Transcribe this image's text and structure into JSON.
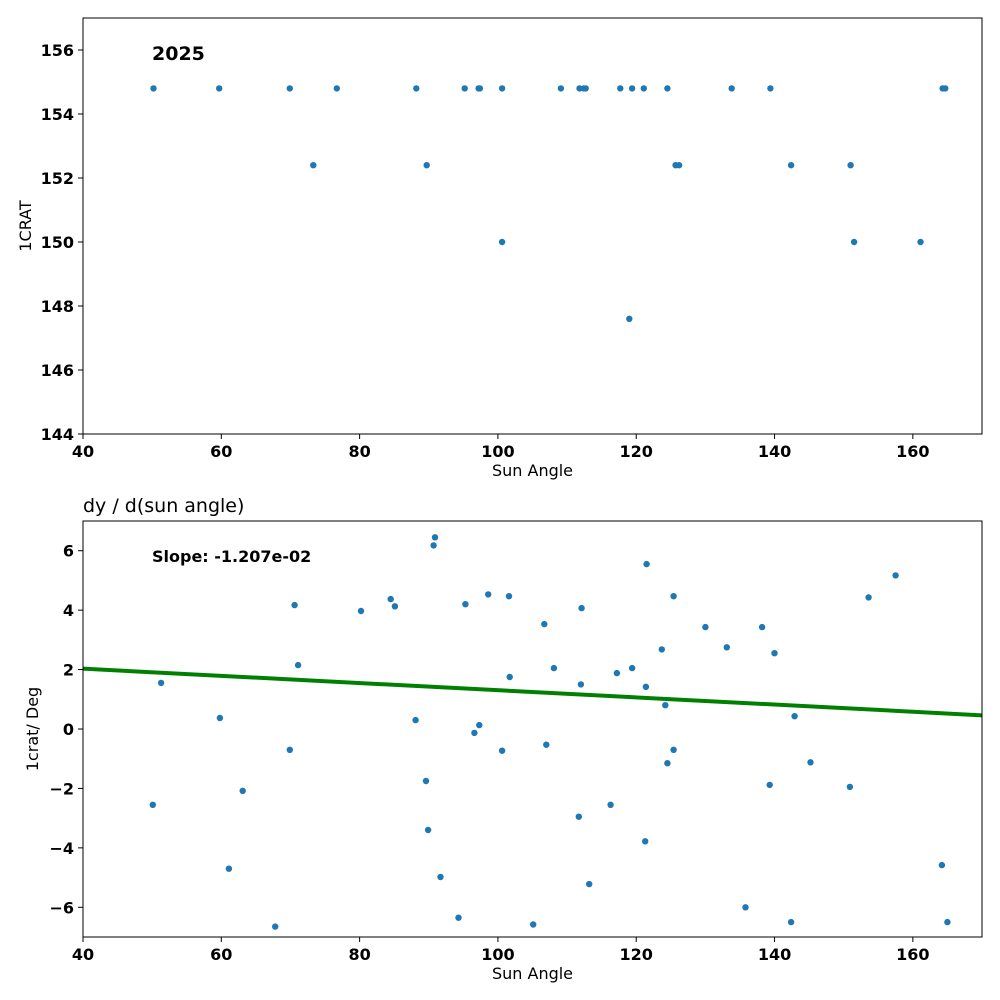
{
  "chart_data": [
    {
      "type": "scatter",
      "title": "",
      "annotation": "2025",
      "xlabel": "Sun Angle",
      "ylabel": "1CRAT",
      "xlim": [
        40,
        170
      ],
      "ylim": [
        144,
        157
      ],
      "xticks": [
        "40",
        "60",
        "80",
        "100",
        "120",
        "140",
        "160"
      ],
      "yticks": [
        "144",
        "146",
        "148",
        "150",
        "152",
        "154",
        "156"
      ],
      "grid": false,
      "marker_color": "#1f77b4",
      "series": [
        {
          "x": [
            50.2,
            59.7,
            69.9,
            76.7,
            88.2,
            95.2,
            97.2,
            97.4,
            100.6,
            109.1,
            111.8,
            112.4,
            112.7,
            117.7,
            119.4,
            121.1,
            124.5,
            133.8,
            139.4,
            164.3,
            164.7,
            73.3,
            89.7,
            125.7,
            126.2,
            142.4,
            151.0,
            100.6,
            151.5,
            161.1,
            119.0
          ],
          "y": [
            154.8,
            154.8,
            154.8,
            154.8,
            154.8,
            154.8,
            154.8,
            154.8,
            154.8,
            154.8,
            154.8,
            154.8,
            154.8,
            154.8,
            154.8,
            154.8,
            154.8,
            154.8,
            154.8,
            154.8,
            154.8,
            152.4,
            152.4,
            152.4,
            152.4,
            152.4,
            152.4,
            150.0,
            150.0,
            150.0,
            147.6
          ]
        }
      ]
    },
    {
      "type": "scatter",
      "title": "dy / d(sun angle)",
      "annotation": "Slope: -1.207e-02",
      "xlabel": "Sun Angle",
      "ylabel": "1crat/ Deg",
      "xlim": [
        40,
        170
      ],
      "ylim": [
        -7,
        7
      ],
      "xticks": [
        "40",
        "60",
        "80",
        "100",
        "120",
        "140",
        "160"
      ],
      "yticks": [
        "−6",
        "−4",
        "−2",
        "0",
        "2",
        "4",
        "6"
      ],
      "grid": false,
      "marker_color": "#1f77b4",
      "fit_line": {
        "slope": -0.01207,
        "x": [
          40,
          170
        ],
        "y": [
          2.03,
          0.46
        ],
        "color": "#008000"
      },
      "series": [
        {
          "x": [
            50.1,
            51.3,
            59.8,
            61.1,
            63.1,
            67.8,
            69.9,
            70.6,
            71.1,
            80.2,
            84.5,
            85.1,
            88.1,
            89.6,
            89.9,
            90.7,
            90.9,
            91.7,
            94.3,
            95.3,
            96.6,
            97.3,
            98.6,
            100.6,
            101.6,
            101.7,
            105.1,
            106.7,
            107.0,
            108.1,
            111.7,
            112.0,
            112.1,
            113.2,
            116.3,
            117.2,
            119.4,
            121.3,
            121.4,
            121.5,
            123.7,
            124.2,
            124.5,
            125.4,
            125.4,
            130.0,
            133.1,
            135.8,
            138.2,
            139.3,
            140.0,
            142.4,
            142.9,
            145.2,
            150.9,
            153.6,
            157.5,
            164.2,
            165.0
          ],
          "y": [
            -2.55,
            1.55,
            0.37,
            -4.7,
            -2.08,
            -6.65,
            -0.7,
            4.17,
            2.15,
            3.97,
            4.37,
            4.13,
            0.3,
            -1.75,
            -3.4,
            6.18,
            6.45,
            -4.98,
            -6.35,
            4.2,
            -0.13,
            0.13,
            4.53,
            -0.73,
            4.47,
            1.75,
            -6.58,
            3.53,
            -0.53,
            2.05,
            -2.95,
            1.5,
            4.07,
            -5.22,
            -2.55,
            1.88,
            2.05,
            -3.78,
            1.42,
            5.55,
            2.68,
            0.8,
            -1.15,
            -0.7,
            4.47,
            3.43,
            2.75,
            -6.0,
            3.43,
            -1.88,
            2.55,
            -6.5,
            0.43,
            -1.12,
            -1.95,
            4.43,
            5.17,
            -4.58,
            -6.5
          ]
        }
      ]
    }
  ]
}
